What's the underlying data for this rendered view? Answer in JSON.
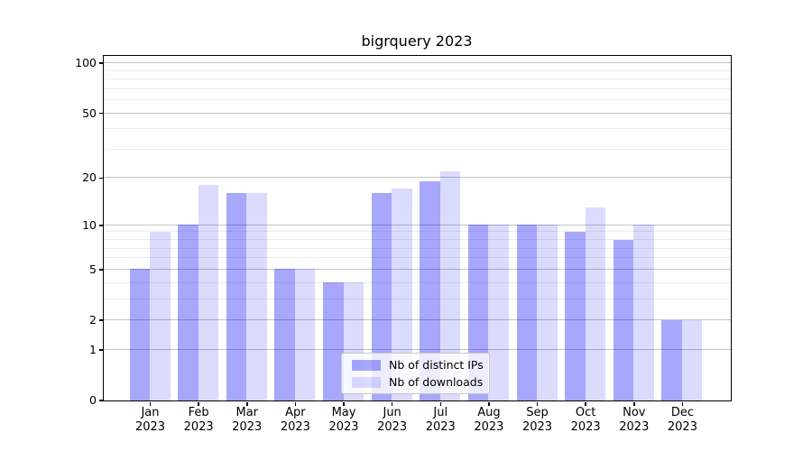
{
  "title": "bigrquery 2023",
  "chart_data": {
    "type": "bar",
    "title": "bigrquery 2023",
    "months": [
      "Jan",
      "Feb",
      "Mar",
      "Apr",
      "May",
      "Jun",
      "Jul",
      "Aug",
      "Sep",
      "Oct",
      "Nov",
      "Dec"
    ],
    "year": "2023",
    "series": [
      {
        "name": "Nb of distinct IPs",
        "values": [
          5,
          10,
          16,
          5,
          4,
          16,
          19,
          10,
          10,
          9,
          8,
          2
        ],
        "fill": "rgba(0,0,246,0.345)",
        "color_hex": "#a8a8f8"
      },
      {
        "name": "Nb of downloads",
        "values": [
          9,
          18,
          16,
          5,
          4,
          17,
          22,
          10,
          10,
          13,
          10,
          2
        ],
        "fill": "rgba(0,0,246,0.14)",
        "color_hex": "#dcdcfb"
      }
    ],
    "yscale": "log1p",
    "yticks": [
      0,
      1,
      2,
      5,
      10,
      20,
      50,
      100
    ],
    "yticks_minor": [
      3,
      4,
      6,
      7,
      8,
      9,
      30,
      40,
      60,
      70,
      80,
      90
    ],
    "ylim": [
      0,
      111
    ],
    "grid": true,
    "legend_position": "lower center"
  }
}
